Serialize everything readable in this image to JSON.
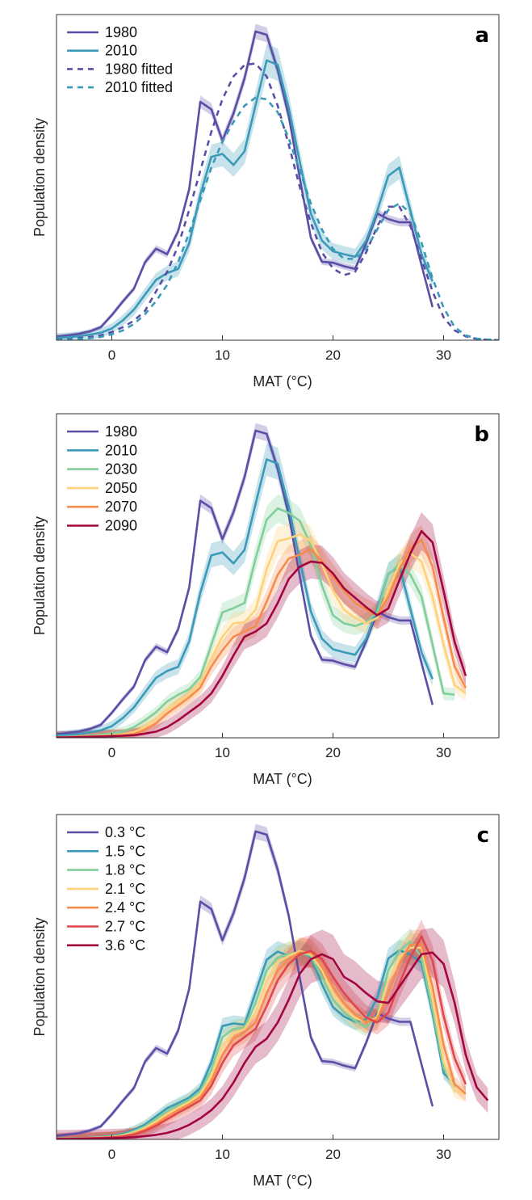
{
  "chart_data": [
    {
      "panel_label": "a",
      "type": "line",
      "xlabel": "MAT (°C)",
      "ylabel": "Population density",
      "xlim": [
        -5,
        35
      ],
      "ylim": [
        0,
        1
      ],
      "xticks": [
        0,
        10,
        20,
        30
      ],
      "grid": false,
      "legend_placement": "top-left",
      "series": [
        {
          "name": "1980",
          "color": "#5b4ea6",
          "dashed": false,
          "band": 0.015,
          "x_start": -5,
          "values": [
            0.011,
            0.015,
            0.019,
            0.027,
            0.04,
            0.077,
            0.119,
            0.158,
            0.239,
            0.281,
            0.264,
            0.335,
            0.464,
            0.732,
            0.709,
            0.613,
            0.696,
            0.804,
            0.948,
            0.938,
            0.83,
            0.688,
            0.497,
            0.314,
            0.241,
            0.238,
            0.227,
            0.219,
            0.298,
            0.389,
            0.372,
            0.362,
            0.362,
            0.231,
            0.102
          ]
        },
        {
          "name": "2010",
          "color": "#3a9ab8",
          "dashed": false,
          "band": 0.035,
          "x_start": -5,
          "values": [
            0.007,
            0.009,
            0.012,
            0.017,
            0.023,
            0.036,
            0.061,
            0.094,
            0.14,
            0.185,
            0.206,
            0.219,
            0.298,
            0.447,
            0.563,
            0.572,
            0.538,
            0.58,
            0.722,
            0.859,
            0.846,
            0.713,
            0.547,
            0.389,
            0.306,
            0.273,
            0.264,
            0.256,
            0.306,
            0.397,
            0.505,
            0.53,
            0.397,
            0.264,
            0.181
          ]
        },
        {
          "name": "1980 fitted",
          "color": "#5b4ea6",
          "dashed": true,
          "band": 0,
          "x_start": -5,
          "values": [
            0.003,
            0.004,
            0.006,
            0.01,
            0.015,
            0.025,
            0.04,
            0.06,
            0.09,
            0.15,
            0.21,
            0.29,
            0.4,
            0.52,
            0.64,
            0.74,
            0.81,
            0.845,
            0.85,
            0.81,
            0.72,
            0.6,
            0.47,
            0.36,
            0.27,
            0.22,
            0.2,
            0.21,
            0.27,
            0.35,
            0.41,
            0.41,
            0.35,
            0.25,
            0.15,
            0.07,
            0.03,
            0.012,
            0.004,
            0.001,
            0
          ]
        },
        {
          "name": "2010 fitted",
          "color": "#3a9ab8",
          "dashed": true,
          "band": 0,
          "x_start": -5,
          "values": [
            0.002,
            0.003,
            0.004,
            0.006,
            0.01,
            0.018,
            0.03,
            0.05,
            0.08,
            0.12,
            0.17,
            0.24,
            0.33,
            0.43,
            0.53,
            0.61,
            0.67,
            0.72,
            0.745,
            0.74,
            0.7,
            0.62,
            0.52,
            0.42,
            0.34,
            0.28,
            0.25,
            0.25,
            0.28,
            0.34,
            0.4,
            0.42,
            0.39,
            0.3,
            0.19,
            0.1,
            0.04,
            0.015,
            0.005,
            0.002,
            0
          ]
        }
      ]
    },
    {
      "panel_label": "b",
      "type": "line",
      "xlabel": "MAT (°C)",
      "ylabel": "Population density",
      "xlim": [
        -5,
        35
      ],
      "ylim": [
        0,
        1
      ],
      "xticks": [
        0,
        10,
        20,
        30
      ],
      "grid": false,
      "legend_placement": "top-left",
      "series": [
        {
          "name": "1980",
          "color": "#5b4ea6",
          "dashed": false,
          "band": 0.015,
          "x_start": -5,
          "values": [
            0.011,
            0.015,
            0.019,
            0.027,
            0.04,
            0.077,
            0.119,
            0.158,
            0.239,
            0.281,
            0.264,
            0.335,
            0.464,
            0.732,
            0.709,
            0.613,
            0.696,
            0.804,
            0.948,
            0.938,
            0.83,
            0.688,
            0.497,
            0.314,
            0.241,
            0.238,
            0.227,
            0.219,
            0.298,
            0.389,
            0.372,
            0.362,
            0.362,
            0.231,
            0.102
          ]
        },
        {
          "name": "2010",
          "color": "#3a9ab8",
          "dashed": false,
          "band": 0.035,
          "x_start": -5,
          "values": [
            0.007,
            0.009,
            0.012,
            0.017,
            0.023,
            0.036,
            0.061,
            0.094,
            0.14,
            0.185,
            0.206,
            0.219,
            0.298,
            0.447,
            0.563,
            0.572,
            0.538,
            0.58,
            0.722,
            0.859,
            0.846,
            0.713,
            0.547,
            0.389,
            0.306,
            0.273,
            0.264,
            0.256,
            0.306,
            0.397,
            0.505,
            0.53,
            0.397,
            0.264,
            0.181
          ]
        },
        {
          "name": "2030",
          "color": "#80cf9b",
          "dashed": false,
          "band": 0.035,
          "x_start": -5,
          "values": [
            0.002,
            0.003,
            0.004,
            0.006,
            0.009,
            0.014,
            0.019,
            0.033,
            0.054,
            0.079,
            0.112,
            0.133,
            0.15,
            0.187,
            0.287,
            0.387,
            0.4,
            0.416,
            0.553,
            0.673,
            0.708,
            0.694,
            0.669,
            0.594,
            0.47,
            0.378,
            0.353,
            0.345,
            0.357,
            0.387,
            0.503,
            0.536,
            0.503,
            0.436,
            0.287,
            0.137,
            0.133
          ]
        },
        {
          "name": "2050",
          "color": "#fdd27a",
          "dashed": false,
          "band": 0.04,
          "x_start": -5,
          "values": [
            0.001,
            0.002,
            0.003,
            0.004,
            0.006,
            0.008,
            0.011,
            0.017,
            0.033,
            0.058,
            0.087,
            0.112,
            0.133,
            0.17,
            0.245,
            0.312,
            0.353,
            0.357,
            0.395,
            0.52,
            0.607,
            0.615,
            0.628,
            0.607,
            0.536,
            0.453,
            0.395,
            0.37,
            0.353,
            0.37,
            0.453,
            0.536,
            0.569,
            0.544,
            0.436,
            0.287,
            0.162,
            0.137
          ]
        },
        {
          "name": "2070",
          "color": "#f78b4b",
          "dashed": false,
          "band": 0.04,
          "x_start": -5,
          "values": [
            0.001,
            0.002,
            0.003,
            0.004,
            0.005,
            0.006,
            0.008,
            0.012,
            0.025,
            0.045,
            0.075,
            0.1,
            0.125,
            0.155,
            0.22,
            0.27,
            0.312,
            0.328,
            0.345,
            0.42,
            0.503,
            0.553,
            0.565,
            0.582,
            0.544,
            0.495,
            0.453,
            0.416,
            0.395,
            0.378,
            0.436,
            0.52,
            0.586,
            0.611,
            0.528,
            0.37,
            0.22,
            0.154
          ]
        },
        {
          "name": "2090",
          "color": "#a3063f",
          "dashed": false,
          "band": 0.05,
          "x_start": -5,
          "values": [
            0.001,
            0.001,
            0.002,
            0.003,
            0.004,
            0.005,
            0.006,
            0.008,
            0.013,
            0.019,
            0.033,
            0.054,
            0.079,
            0.104,
            0.137,
            0.191,
            0.254,
            0.312,
            0.328,
            0.353,
            0.416,
            0.49,
            0.528,
            0.544,
            0.54,
            0.507,
            0.461,
            0.432,
            0.403,
            0.378,
            0.399,
            0.486,
            0.569,
            0.638,
            0.603,
            0.453,
            0.295,
            0.191
          ]
        }
      ]
    },
    {
      "panel_label": "c",
      "type": "line",
      "xlabel": "MAT (°C)",
      "ylabel": "Population density",
      "xlim": [
        -5,
        35
      ],
      "ylim": [
        0,
        1
      ],
      "xticks": [
        0,
        10,
        20,
        30
      ],
      "grid": false,
      "legend_placement": "top-left",
      "series": [
        {
          "name": "0.3 °C",
          "color": "#5b4ea6",
          "dashed": false,
          "band": 0.015,
          "x_start": -5,
          "values": [
            0.011,
            0.015,
            0.019,
            0.027,
            0.04,
            0.077,
            0.119,
            0.158,
            0.239,
            0.281,
            0.264,
            0.335,
            0.464,
            0.732,
            0.709,
            0.613,
            0.696,
            0.804,
            0.948,
            0.938,
            0.83,
            0.688,
            0.497,
            0.314,
            0.241,
            0.238,
            0.227,
            0.219,
            0.298,
            0.389,
            0.372,
            0.362,
            0.362,
            0.231,
            0.102
          ]
        },
        {
          "name": "1.5 °C",
          "color": "#3a9ab8",
          "dashed": false,
          "band": 0.03,
          "x_start": -5,
          "values": [
            0.002,
            0.003,
            0.004,
            0.006,
            0.008,
            0.011,
            0.017,
            0.029,
            0.046,
            0.071,
            0.096,
            0.112,
            0.129,
            0.158,
            0.237,
            0.349,
            0.357,
            0.353,
            0.453,
            0.553,
            0.578,
            0.565,
            0.578,
            0.561,
            0.478,
            0.407,
            0.378,
            0.362,
            0.37,
            0.436,
            0.557,
            0.582,
            0.569,
            0.544,
            0.387,
            0.204,
            0.17
          ]
        },
        {
          "name": "1.8 °C",
          "color": "#80cf9b",
          "dashed": false,
          "band": 0.035,
          "x_start": -5,
          "values": [
            0.002,
            0.003,
            0.004,
            0.005,
            0.007,
            0.009,
            0.014,
            0.025,
            0.04,
            0.063,
            0.087,
            0.105,
            0.122,
            0.148,
            0.215,
            0.315,
            0.34,
            0.345,
            0.42,
            0.52,
            0.56,
            0.57,
            0.575,
            0.565,
            0.5,
            0.43,
            0.39,
            0.365,
            0.345,
            0.38,
            0.52,
            0.58,
            0.61,
            0.56,
            0.4,
            0.22,
            0.16
          ]
        },
        {
          "name": "2.1 °C",
          "color": "#fdd27a",
          "dashed": false,
          "band": 0.04,
          "x_start": -5,
          "values": [
            0.001,
            0.002,
            0.003,
            0.005,
            0.006,
            0.008,
            0.012,
            0.021,
            0.035,
            0.055,
            0.078,
            0.097,
            0.115,
            0.14,
            0.195,
            0.29,
            0.325,
            0.34,
            0.39,
            0.49,
            0.545,
            0.565,
            0.58,
            0.57,
            0.52,
            0.45,
            0.405,
            0.375,
            0.36,
            0.375,
            0.49,
            0.56,
            0.59,
            0.59,
            0.43,
            0.24,
            0.15,
            0.14
          ]
        },
        {
          "name": "2.4 °C",
          "color": "#f78b4b",
          "dashed": false,
          "band": 0.04,
          "x_start": -5,
          "values": [
            0.001,
            0.002,
            0.003,
            0.004,
            0.005,
            0.007,
            0.01,
            0.018,
            0.03,
            0.048,
            0.07,
            0.09,
            0.108,
            0.13,
            0.18,
            0.26,
            0.31,
            0.33,
            0.36,
            0.45,
            0.52,
            0.555,
            0.575,
            0.575,
            0.535,
            0.47,
            0.42,
            0.385,
            0.36,
            0.37,
            0.45,
            0.54,
            0.6,
            0.6,
            0.47,
            0.29,
            0.17,
            0.14
          ]
        },
        {
          "name": "2.7 °C",
          "color": "#e0474c",
          "dashed": false,
          "band": 0.045,
          "x_start": -5,
          "values": [
            0.001,
            0.002,
            0.003,
            0.004,
            0.005,
            0.006,
            0.009,
            0.015,
            0.026,
            0.042,
            0.062,
            0.082,
            0.1,
            0.12,
            0.165,
            0.235,
            0.29,
            0.315,
            0.34,
            0.41,
            0.49,
            0.54,
            0.57,
            0.58,
            0.555,
            0.5,
            0.45,
            0.41,
            0.375,
            0.36,
            0.39,
            0.48,
            0.56,
            0.625,
            0.55,
            0.38,
            0.25,
            0.17
          ]
        },
        {
          "name": "3.6 °C",
          "color": "#a3063f",
          "dashed": false,
          "band": 0.07,
          "x_start": -5,
          "values": [
            0.001,
            0.001,
            0.002,
            0.002,
            0.003,
            0.004,
            0.005,
            0.007,
            0.01,
            0.014,
            0.02,
            0.03,
            0.045,
            0.065,
            0.09,
            0.125,
            0.175,
            0.235,
            0.285,
            0.31,
            0.36,
            0.43,
            0.51,
            0.555,
            0.57,
            0.555,
            0.5,
            0.48,
            0.45,
            0.425,
            0.42,
            0.47,
            0.52,
            0.57,
            0.575,
            0.54,
            0.42,
            0.26,
            0.16,
            0.12
          ]
        }
      ]
    }
  ]
}
